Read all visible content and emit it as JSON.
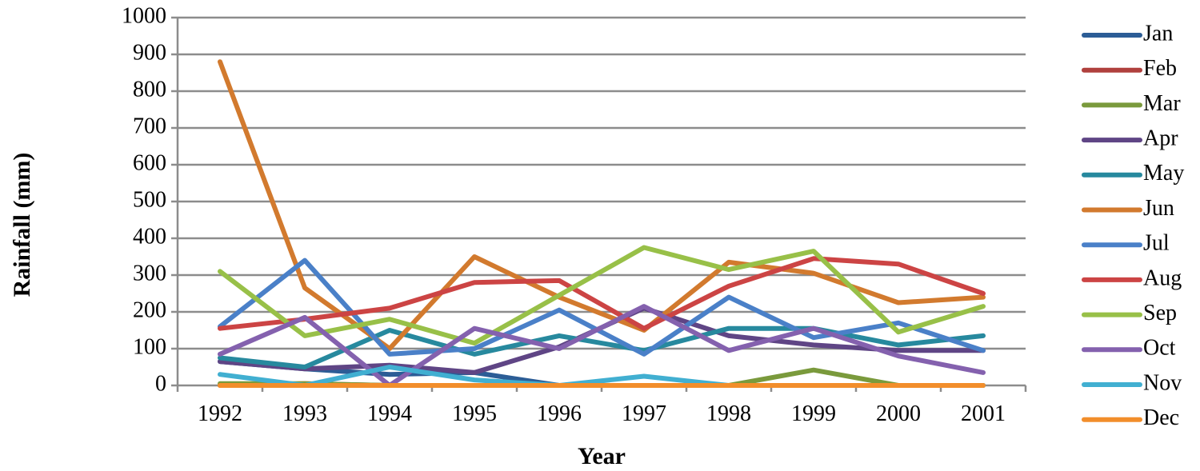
{
  "chart_data": {
    "type": "line",
    "xlabel": "Year",
    "ylabel": "Rainfall (mm)",
    "ylim": [
      0,
      1000
    ],
    "yticks": [
      0,
      100,
      200,
      300,
      400,
      500,
      600,
      700,
      800,
      900,
      1000
    ],
    "x": [
      "1992",
      "1993",
      "1994",
      "1995",
      "1996",
      "1997",
      "1998",
      "1999",
      "2000",
      "2001"
    ],
    "grid": true,
    "legend_position": "right",
    "series": [
      {
        "name": "Jan",
        "color": "#2c5d96",
        "values": [
          65,
          45,
          30,
          35,
          0,
          0,
          0,
          0,
          0,
          0
        ]
      },
      {
        "name": "Feb",
        "color": "#b0403d",
        "values": [
          0,
          5,
          0,
          0,
          0,
          0,
          0,
          0,
          0,
          0
        ]
      },
      {
        "name": "Mar",
        "color": "#7a9a3c",
        "values": [
          5,
          5,
          0,
          0,
          0,
          0,
          0,
          42,
          0,
          0
        ]
      },
      {
        "name": "Apr",
        "color": "#5f4585",
        "values": [
          65,
          45,
          55,
          35,
          105,
          210,
          135,
          110,
          95,
          95
        ]
      },
      {
        "name": "May",
        "color": "#27899e",
        "values": [
          75,
          50,
          150,
          85,
          135,
          95,
          155,
          155,
          110,
          135
        ]
      },
      {
        "name": "Jun",
        "color": "#d27a2e",
        "values": [
          880,
          265,
          100,
          350,
          240,
          150,
          335,
          305,
          225,
          240
        ]
      },
      {
        "name": "Jul",
        "color": "#4a80c8",
        "values": [
          160,
          340,
          85,
          100,
          205,
          85,
          240,
          130,
          170,
          95
        ]
      },
      {
        "name": "Aug",
        "color": "#cc4444",
        "values": [
          155,
          180,
          210,
          280,
          285,
          155,
          270,
          345,
          330,
          250
        ]
      },
      {
        "name": "Sep",
        "color": "#98c048",
        "values": [
          310,
          135,
          180,
          115,
          245,
          375,
          315,
          365,
          145,
          215
        ]
      },
      {
        "name": "Oct",
        "color": "#8461ae",
        "values": [
          85,
          185,
          0,
          155,
          100,
          215,
          95,
          155,
          80,
          35
        ]
      },
      {
        "name": "Nov",
        "color": "#41afd1",
        "values": [
          30,
          0,
          50,
          15,
          0,
          25,
          0,
          0,
          0,
          0
        ]
      },
      {
        "name": "Dec",
        "color": "#f28e2b",
        "values": [
          0,
          0,
          0,
          0,
          0,
          0,
          0,
          0,
          0,
          0
        ]
      }
    ]
  }
}
